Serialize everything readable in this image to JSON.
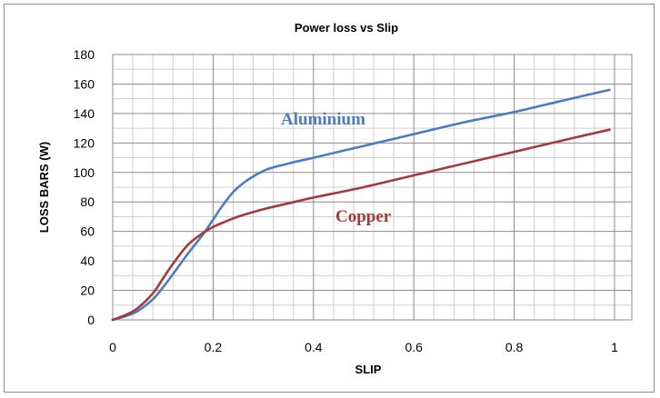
{
  "chart_data": {
    "type": "line",
    "title": "Power loss vs Slip",
    "xlabel": "SLIP",
    "ylabel": "LOSS BARS (W)",
    "xlim": [
      0,
      1
    ],
    "ylim": [
      0,
      180
    ],
    "xticks": [
      0,
      0.2,
      0.4,
      0.6,
      0.8,
      1
    ],
    "xtick_labels": [
      "0",
      "0.2",
      "0.4",
      "0.6",
      "0.8",
      "1"
    ],
    "yticks": [
      0,
      20,
      40,
      60,
      80,
      100,
      120,
      140,
      160,
      180
    ],
    "ytick_labels": [
      "0",
      "20",
      "40",
      "60",
      "80",
      "100",
      "120",
      "140",
      "160",
      "180"
    ],
    "grid": true,
    "legend": "inline labels",
    "series": [
      {
        "name": "Aluminium",
        "color": "#4a7cc4",
        "x": [
          0,
          0.03,
          0.05,
          0.08,
          0.1,
          0.12,
          0.15,
          0.18,
          0.2,
          0.22,
          0.25,
          0.3,
          0.35,
          0.4,
          0.5,
          0.6,
          0.7,
          0.8,
          0.9,
          0.99
        ],
        "y": [
          0,
          3,
          6,
          14,
          22,
          31,
          45,
          58,
          68,
          78,
          90,
          101,
          106,
          110,
          118,
          126,
          134,
          141,
          149,
          156
        ]
      },
      {
        "name": "Copper",
        "color": "#a6393a",
        "x": [
          0,
          0.03,
          0.05,
          0.08,
          0.1,
          0.12,
          0.15,
          0.18,
          0.2,
          0.22,
          0.25,
          0.3,
          0.35,
          0.4,
          0.5,
          0.6,
          0.7,
          0.8,
          0.9,
          0.99
        ],
        "y": [
          0,
          4,
          8,
          18,
          28,
          38,
          51,
          59,
          63,
          66,
          70,
          75,
          79,
          83,
          90,
          98,
          106,
          114,
          122,
          129
        ]
      }
    ]
  }
}
